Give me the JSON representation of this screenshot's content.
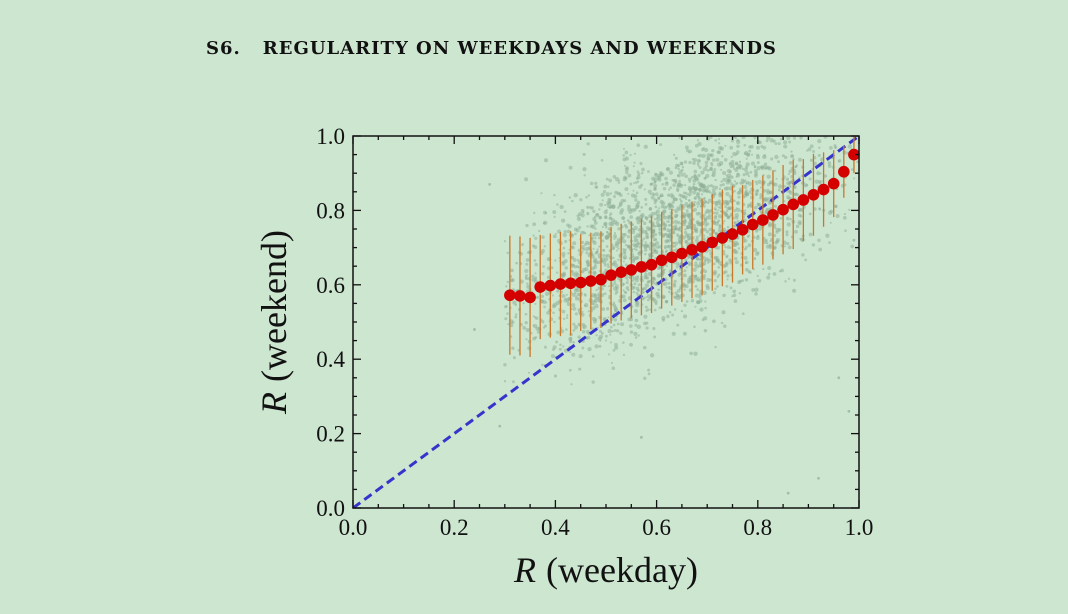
{
  "section": {
    "number": "S6.",
    "title": "REGULARITY ON WEEKDAYS AND WEEKENDS"
  },
  "chart_data": {
    "type": "scatter",
    "xlabel": {
      "var": "R",
      "rest": "(weekday)"
    },
    "ylabel": {
      "var": "R",
      "rest": "(weekend)"
    },
    "xlim": [
      0.0,
      1.0
    ],
    "ylim": [
      0.0,
      1.0
    ],
    "xticks": [
      "0.0",
      "0.2",
      "0.4",
      "0.6",
      "0.8",
      "1.0"
    ],
    "yticks": [
      "0.0",
      "0.2",
      "0.4",
      "0.6",
      "0.8",
      "1.0"
    ],
    "grid": false,
    "legend": "none",
    "colors": {
      "background": "#cde6d0",
      "scatter": "#8fae97",
      "mean": "#d40000",
      "errorbar": "#c9782a",
      "diagonal": "#3535cc"
    },
    "series": [
      {
        "kind": "reference_line",
        "style": "dashed",
        "x": [
          0.0,
          1.0
        ],
        "y": [
          0.0,
          1.0
        ]
      },
      {
        "kind": "binned_mean_with_error",
        "x": [
          0.31,
          0.33,
          0.35,
          0.37,
          0.39,
          0.41,
          0.43,
          0.45,
          0.47,
          0.49,
          0.51,
          0.53,
          0.55,
          0.57,
          0.59,
          0.61,
          0.63,
          0.65,
          0.67,
          0.69,
          0.71,
          0.73,
          0.75,
          0.77,
          0.79,
          0.81,
          0.83,
          0.85,
          0.87,
          0.89,
          0.91,
          0.93,
          0.95,
          0.97,
          0.99
        ],
        "y": [
          0.572,
          0.57,
          0.566,
          0.594,
          0.598,
          0.602,
          0.604,
          0.606,
          0.61,
          0.614,
          0.626,
          0.634,
          0.64,
          0.648,
          0.654,
          0.666,
          0.674,
          0.684,
          0.694,
          0.702,
          0.714,
          0.726,
          0.736,
          0.748,
          0.762,
          0.774,
          0.788,
          0.802,
          0.816,
          0.828,
          0.842,
          0.856,
          0.872,
          0.904,
          0.95
        ],
        "err": [
          0.16,
          0.16,
          0.16,
          0.14,
          0.14,
          0.14,
          0.14,
          0.13,
          0.13,
          0.13,
          0.13,
          0.13,
          0.13,
          0.13,
          0.13,
          0.13,
          0.13,
          0.13,
          0.13,
          0.13,
          0.13,
          0.13,
          0.13,
          0.12,
          0.12,
          0.12,
          0.12,
          0.12,
          0.12,
          0.11,
          0.11,
          0.1,
          0.09,
          0.07,
          0.05
        ]
      }
    ]
  }
}
